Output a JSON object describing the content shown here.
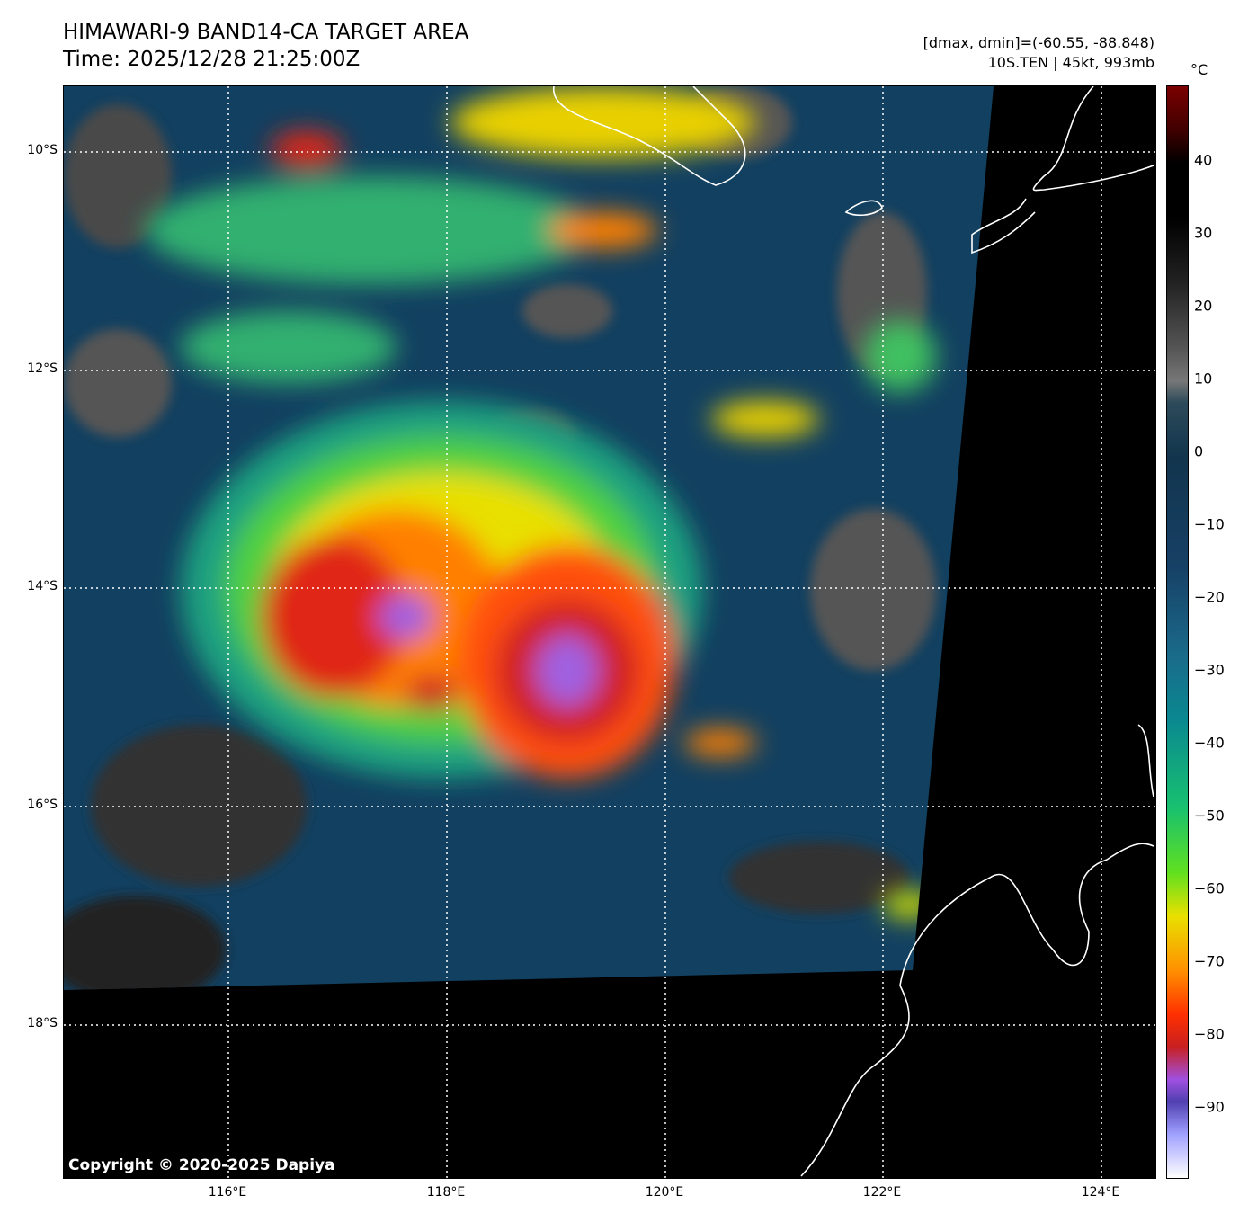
{
  "header": {
    "title": "HIMAWARI-9 BAND14-CA TARGET AREA",
    "time": "Time: 2025/12/28 21:25:00Z",
    "dminmax": "[dmax, dmin]=(-60.55, -88.848)",
    "storm": "10S.TEN | 45kt, 993mb"
  },
  "colorbar": {
    "unit": "°C",
    "ticks": [
      "40",
      "30",
      "20",
      "10",
      "0",
      "−10",
      "−20",
      "−30",
      "−40",
      "−50",
      "−60",
      "−70",
      "−80",
      "−90"
    ]
  },
  "axes": {
    "lat_labels": [
      "10°S",
      "12°S",
      "14°S",
      "16°S",
      "18°S"
    ],
    "lon_labels": [
      "116°E",
      "118°E",
      "120°E",
      "122°E",
      "124°E"
    ]
  },
  "copyright": "Copyright © 2020-2025 Dapiya"
}
